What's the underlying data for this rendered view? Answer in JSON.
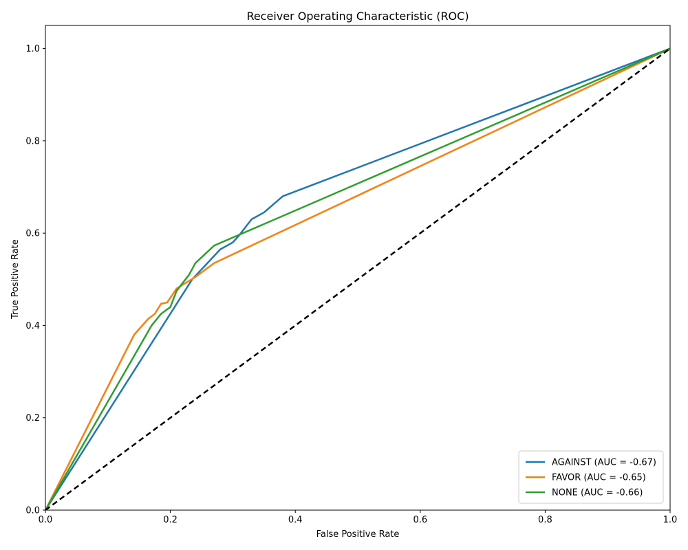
{
  "chart_data": {
    "type": "line",
    "title": "Receiver Operating Characteristic (ROC)",
    "xlabel": "False Positive Rate",
    "ylabel": "True Positive Rate",
    "xlim": [
      0.0,
      1.0
    ],
    "ylim": [
      0.0,
      1.05
    ],
    "x_ticks": [
      "0.0",
      "0.2",
      "0.4",
      "0.6",
      "0.8",
      "1.0"
    ],
    "y_ticks": [
      "0.0",
      "0.2",
      "0.4",
      "0.6",
      "0.8",
      "1.0"
    ],
    "legend_position": "bottom-right",
    "grid": false,
    "series": [
      {
        "name": "AGAINST (AUC = -0.67)",
        "color": "#1f77b4",
        "x": [
          0.0,
          0.235,
          0.28,
          0.3,
          0.31,
          0.33,
          0.35,
          0.38,
          1.0
        ],
        "y": [
          0.0,
          0.5,
          0.565,
          0.58,
          0.595,
          0.63,
          0.645,
          0.68,
          1.0
        ]
      },
      {
        "name": "FAVOR (AUC = -0.65)",
        "color": "#ff7f0e",
        "x": [
          0.0,
          0.142,
          0.165,
          0.175,
          0.185,
          0.195,
          0.21,
          0.24,
          0.27,
          1.0
        ],
        "y": [
          0.0,
          0.38,
          0.415,
          0.425,
          0.447,
          0.45,
          0.48,
          0.505,
          0.535,
          1.0
        ]
      },
      {
        "name": "NONE (AUC = -0.66)",
        "color": "#2ca02c",
        "x": [
          0.0,
          0.17,
          0.185,
          0.2,
          0.21,
          0.23,
          0.24,
          0.27,
          1.0
        ],
        "y": [
          0.0,
          0.4,
          0.425,
          0.44,
          0.475,
          0.51,
          0.535,
          0.573,
          1.0
        ]
      }
    ],
    "reference_line": {
      "x": [
        0.0,
        1.0
      ],
      "y": [
        0.0,
        1.0
      ],
      "color": "#000000",
      "style": "dashed"
    }
  }
}
